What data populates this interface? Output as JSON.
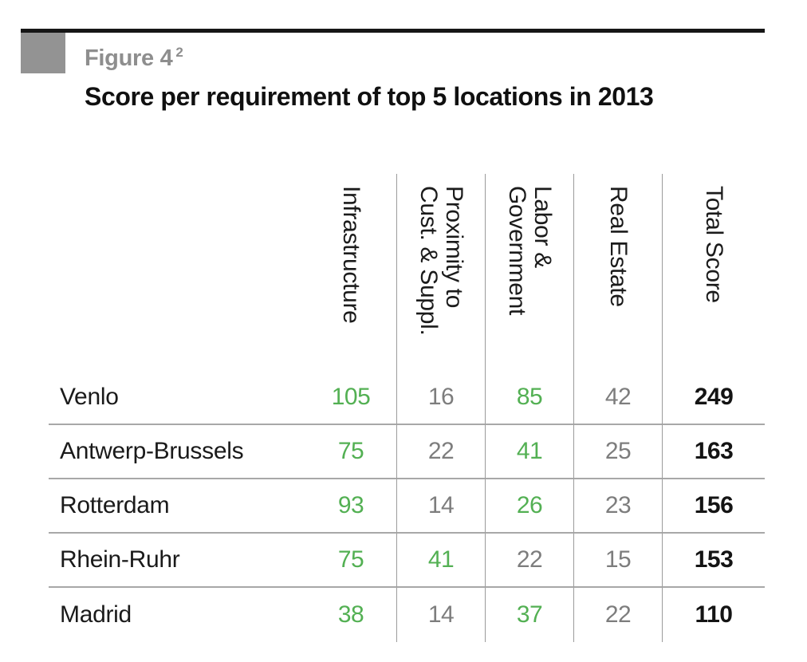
{
  "figure": {
    "label": "Figure 4",
    "superscript": "2",
    "title": "Score per requirement of top 5 locations in 2013"
  },
  "colors": {
    "highlight_green": "#53b053",
    "muted_gray": "#7d7d7d",
    "total_black": "#141414",
    "figure_label_gray": "#8e8e8e",
    "rule_black": "#161616",
    "square_gray": "#939393",
    "grid_line_gray": "#9b9b9b"
  },
  "chart_data": {
    "type": "table",
    "title": "Score per requirement of top 5 locations in 2013",
    "columns": [
      "Infrastructure",
      "Proximity to\nCust. & Suppl.",
      "Labor &\nGovernment",
      "Real Estate",
      "Total Score"
    ],
    "row_header": "",
    "rows": [
      {
        "location": "Venlo",
        "scores": [
          105,
          16,
          85,
          42
        ],
        "score_colors": [
          "green",
          "gray",
          "green",
          "gray"
        ],
        "total": 249
      },
      {
        "location": "Antwerp-Brussels",
        "scores": [
          75,
          22,
          41,
          25
        ],
        "score_colors": [
          "green",
          "gray",
          "green",
          "gray"
        ],
        "total": 163
      },
      {
        "location": "Rotterdam",
        "scores": [
          93,
          14,
          26,
          23
        ],
        "score_colors": [
          "green",
          "gray",
          "green",
          "gray"
        ],
        "total": 156
      },
      {
        "location": "Rhein-Ruhr",
        "scores": [
          75,
          41,
          22,
          15
        ],
        "score_colors": [
          "green",
          "green",
          "gray",
          "gray"
        ],
        "total": 153
      },
      {
        "location": "Madrid",
        "scores": [
          38,
          14,
          37,
          22
        ],
        "score_colors": [
          "green",
          "gray",
          "green",
          "gray"
        ],
        "total": 110
      }
    ],
    "legend_position": "none",
    "grid": "partial: vertical separators between score columns, horizontal separators between rows"
  }
}
